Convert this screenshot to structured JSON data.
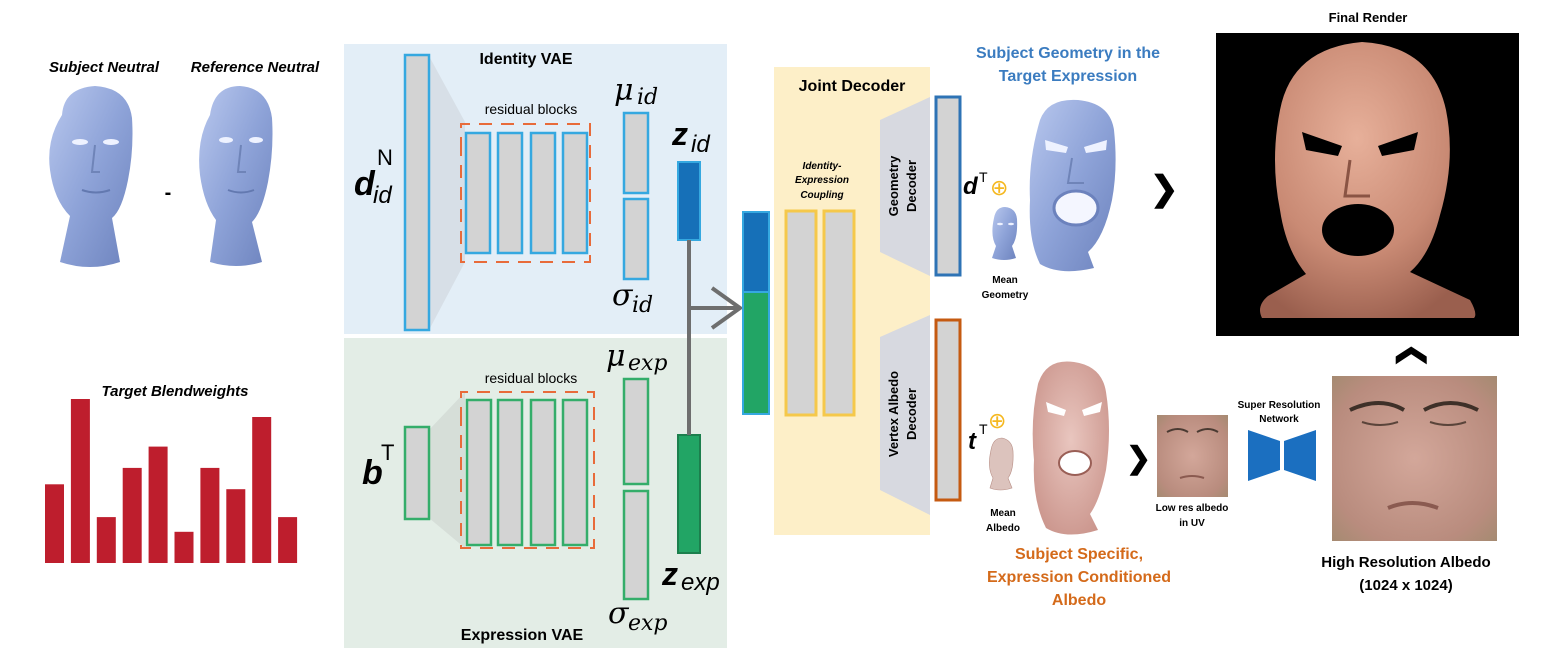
{
  "labels": {
    "subject_neutral": "Subject Neutral",
    "reference_neutral": "Reference Neutral",
    "minus": "-",
    "target_blendweights": "Target Blendweights",
    "identity_vae": "Identity VAE",
    "expression_vae": "Expression VAE",
    "residual_blocks_top": "residual blocks",
    "residual_blocks_bottom": "residual blocks",
    "joint_decoder": "Joint Decoder",
    "coupling_1": "Identity-",
    "coupling_2": "Expression",
    "coupling_3": "Coupling",
    "geometry_decoder_1": "Geometry",
    "geometry_decoder_2": "Decoder",
    "albedo_decoder_1": "Vertex Albedo",
    "albedo_decoder_2": "Decoder",
    "subject_geometry_1": "Subject Geometry in the",
    "subject_geometry_2": "Target Expression",
    "mean_geometry_1": "Mean",
    "mean_geometry_2": "Geometry",
    "mean_albedo_1": "Mean",
    "mean_albedo_2": "Albedo",
    "subject_albedo_1": "Subject Specific,",
    "subject_albedo_2": "Expression Conditioned",
    "subject_albedo_3": "Albedo",
    "low_res_1": "Low res albedo",
    "low_res_2": "in UV",
    "super_res_1": "Super Resolution",
    "super_res_2": "Network",
    "high_res_1": "High Resolution Albedo",
    "high_res_2": "(1024 x 1024)",
    "final_render": "Final Render"
  },
  "symbols": {
    "d_base": "d",
    "d_sub": "id",
    "d_sup": "N",
    "b_base": "b",
    "b_sup": "T",
    "mu": "μ",
    "sigma": "σ",
    "id": "id",
    "exp": "exp",
    "z": "z",
    "dT_base": "d",
    "dT_sup": "T",
    "tT_base": "t",
    "tT_sup": "T",
    "oplus": "⊕"
  },
  "blendweights": [
    0.48,
    1.0,
    0.28,
    0.58,
    0.71,
    0.19,
    0.58,
    0.45,
    0.89,
    0.28
  ],
  "colors": {
    "identity_bg": "#e3eef7",
    "expression_bg": "#e3ede6",
    "joint_bg": "#fdefc8",
    "identity_stroke": "#35a8e0",
    "expression_stroke": "#34ad6a",
    "residual_dash": "#e86b3a",
    "bar": "#be1e2d",
    "z_id": "#1670b8",
    "z_exp": "#22a565",
    "coupling_stroke": "#f5c84a",
    "geom_stroke": "#2e73b5",
    "albedo_stroke": "#c55a11",
    "blue_text": "#3b7cc0",
    "orange_text": "#d46a1a",
    "sr_blue": "#1b6fc0"
  }
}
